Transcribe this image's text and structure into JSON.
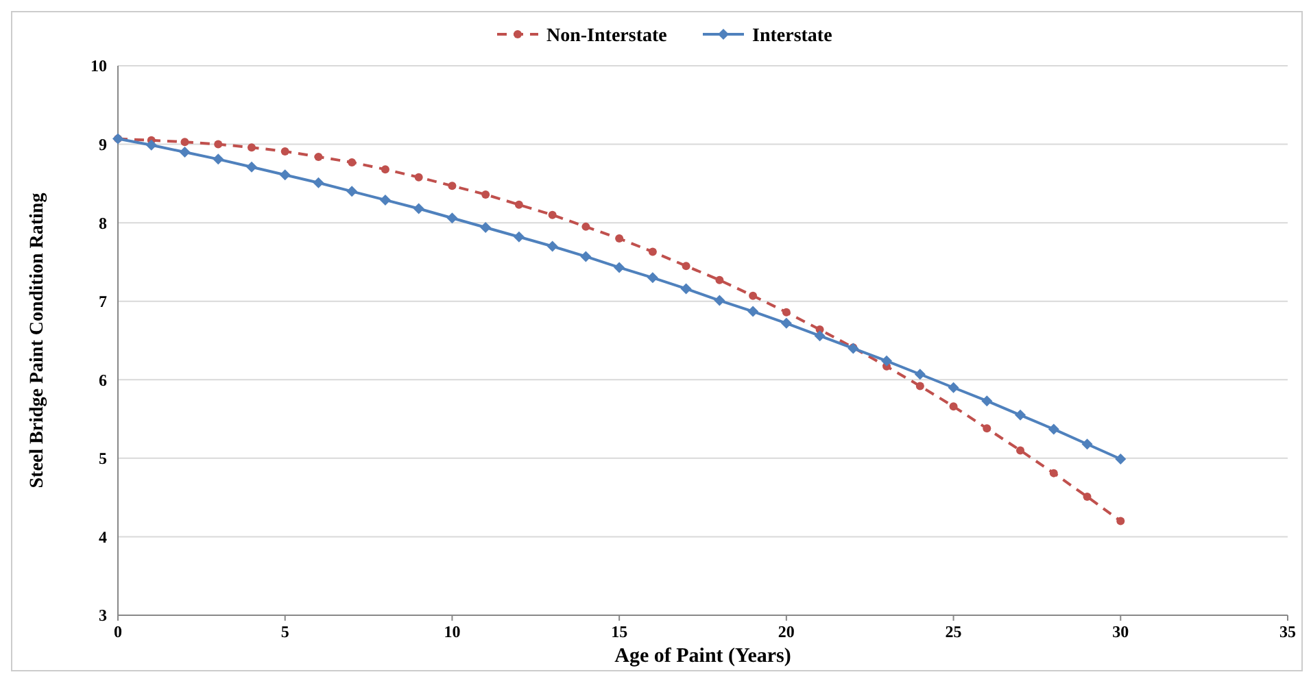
{
  "chart_data": {
    "type": "line",
    "xlabel": "Age of Paint (Years)",
    "ylabel": "Steel Bridge Paint Condition Rating",
    "x": [
      0,
      1,
      2,
      3,
      4,
      5,
      6,
      7,
      8,
      9,
      10,
      11,
      12,
      13,
      14,
      15,
      16,
      17,
      18,
      19,
      20,
      21,
      22,
      23,
      24,
      25,
      26,
      27,
      28,
      29,
      30
    ],
    "xlim": [
      0,
      35
    ],
    "xticks": [
      0,
      5,
      10,
      15,
      20,
      25,
      30,
      35
    ],
    "ylim": [
      3,
      10
    ],
    "yticks": [
      3,
      4,
      5,
      6,
      7,
      8,
      9,
      10
    ],
    "grid": "y",
    "legend": "top",
    "series": [
      {
        "name": "Non-Interstate",
        "color": "#c0504d",
        "marker": "circle",
        "line_style": "dashed",
        "values": [
          9.07,
          9.05,
          9.03,
          9.0,
          8.96,
          8.91,
          8.84,
          8.77,
          8.68,
          8.58,
          8.47,
          8.36,
          8.23,
          8.1,
          7.95,
          7.8,
          7.63,
          7.45,
          7.27,
          7.07,
          6.86,
          6.64,
          6.41,
          6.17,
          5.92,
          5.66,
          5.38,
          5.1,
          4.81,
          4.51,
          4.2
        ]
      },
      {
        "name": "Interstate",
        "color": "#4f81bd",
        "marker": "diamond",
        "line_style": "solid",
        "values": [
          9.07,
          8.99,
          8.9,
          8.81,
          8.71,
          8.61,
          8.51,
          8.4,
          8.29,
          8.18,
          8.06,
          7.94,
          7.82,
          7.7,
          7.57,
          7.43,
          7.3,
          7.16,
          7.01,
          6.87,
          6.72,
          6.56,
          6.4,
          6.24,
          6.07,
          5.9,
          5.73,
          5.55,
          5.37,
          5.18,
          4.99
        ]
      }
    ]
  }
}
